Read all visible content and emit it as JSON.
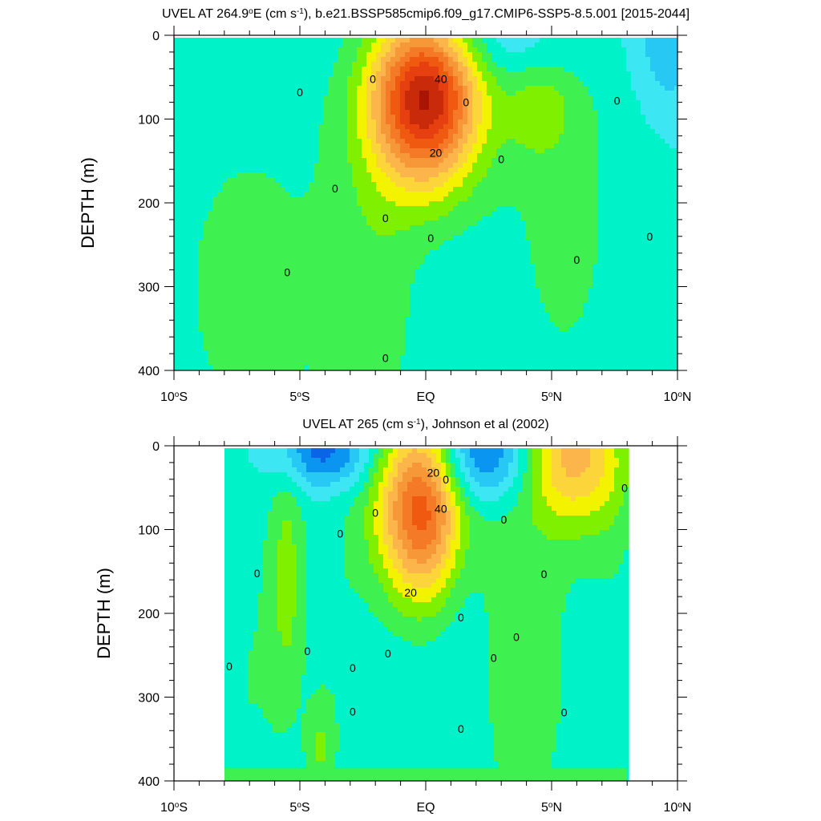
{
  "chart_data": [
    {
      "type": "contour",
      "title_parts": [
        "UVEL AT 264.9",
        "o",
        "E (cm s",
        "-1",
        "), b.e21.BSSP585cmip6.f09_g17.CMIP6-SSP5-8.5.001 [2015-2044]"
      ],
      "ylabel": "DEPTH (m)",
      "xlim": [
        -10,
        10
      ],
      "ylim": [
        400,
        0
      ],
      "y_ticks": [
        0,
        100,
        200,
        300,
        400
      ],
      "x_ticks": [
        {
          "value": -10,
          "parts": [
            "10",
            "o",
            "S"
          ]
        },
        {
          "value": -5,
          "parts": [
            "5",
            "o",
            "S"
          ]
        },
        {
          "value": 0,
          "parts": [
            "EQ"
          ]
        },
        {
          "value": 5,
          "parts": [
            "5",
            "o",
            "N"
          ]
        },
        {
          "value": 10,
          "parts": [
            "10",
            "o",
            "N"
          ]
        }
      ],
      "levels": [
        -10,
        -5,
        0,
        5,
        10,
        15,
        20,
        25,
        30,
        35,
        40,
        45,
        50,
        55
      ],
      "level_colors": [
        "#28c8f5",
        "#3ce6f2",
        "#00f2c8",
        "#3ef050",
        "#7ef000",
        "#f3f300",
        "#fbd53a",
        "#fbb54a",
        "#f79838",
        "#f47a28",
        "#ef5a10",
        "#e64010",
        "#c82a0a",
        "#a81505"
      ],
      "cores": [
        {
          "lat": 0.0,
          "depth": 72,
          "value": 55,
          "width": 1.5,
          "height": 75
        },
        {
          "lat": 4.5,
          "depth": 90,
          "value": 9,
          "width": 0.9,
          "height": 40
        },
        {
          "lat": 2.0,
          "depth": 5,
          "value": -9,
          "width": 2.6,
          "height": 35
        },
        {
          "lat": 9.6,
          "depth": 10,
          "value": -9,
          "width": 1.0,
          "height": 60
        },
        {
          "lat": -7.0,
          "depth": 300,
          "value": 6,
          "width": 3.5,
          "height": 230
        },
        {
          "lat": -2.0,
          "depth": 280,
          "value": 6,
          "width": 1.3,
          "height": 180
        },
        {
          "lat": 5.5,
          "depth": 200,
          "value": 6,
          "width": 2.3,
          "height": 250
        }
      ],
      "contour_labels": [
        {
          "lat": 0.6,
          "depth": 52,
          "text": "40"
        },
        {
          "lat": 0.4,
          "depth": 140,
          "text": "20"
        },
        {
          "lat": -5.0,
          "depth": 68,
          "text": "0"
        },
        {
          "lat": -2.1,
          "depth": 52,
          "text": "0"
        },
        {
          "lat": 1.6,
          "depth": 80,
          "text": "0"
        },
        {
          "lat": 3.0,
          "depth": 148,
          "text": "0"
        },
        {
          "lat": 7.6,
          "depth": 78,
          "text": "0"
        },
        {
          "lat": -3.6,
          "depth": 183,
          "text": "0"
        },
        {
          "lat": -1.6,
          "depth": 218,
          "text": "0"
        },
        {
          "lat": 0.2,
          "depth": 242,
          "text": "0"
        },
        {
          "lat": 6.0,
          "depth": 268,
          "text": "0"
        },
        {
          "lat": 8.9,
          "depth": 240,
          "text": "0"
        },
        {
          "lat": -5.5,
          "depth": 283,
          "text": "0"
        },
        {
          "lat": -1.6,
          "depth": 385,
          "text": "0"
        }
      ]
    },
    {
      "type": "contour",
      "title_parts": [
        "UVEL AT 265 (cm s",
        "-1",
        "), Johnson et al (2002)"
      ],
      "ylabel": "DEPTH (m)",
      "xlim": [
        -10,
        10
      ],
      "ylim": [
        400,
        0
      ],
      "y_ticks": [
        0,
        100,
        200,
        300,
        400
      ],
      "x_ticks": [
        {
          "value": -10,
          "parts": [
            "10",
            "o",
            "S"
          ]
        },
        {
          "value": -5,
          "parts": [
            "5",
            "o",
            "S"
          ]
        },
        {
          "value": 0,
          "parts": [
            "EQ"
          ]
        },
        {
          "value": 5,
          "parts": [
            "5",
            "o",
            "N"
          ]
        },
        {
          "value": 10,
          "parts": [
            "10",
            "o",
            "N"
          ]
        }
      ],
      "data_lat_range": [
        -8,
        8
      ],
      "levels": [
        -20,
        -15,
        -10,
        -5,
        0,
        5,
        10,
        15,
        20,
        25,
        30,
        35,
        40,
        45
      ],
      "level_colors": [
        "#0a64e6",
        "#0a96f0",
        "#28c8f5",
        "#3ce6f2",
        "#00f2c8",
        "#3ef050",
        "#7ef000",
        "#f3f300",
        "#fbd53a",
        "#fbb54a",
        "#f79838",
        "#f47a28",
        "#ef5a10",
        "#e64010"
      ],
      "cores": [
        {
          "lat": -0.1,
          "depth": 70,
          "value": 45,
          "width": 1.3,
          "height": 80
        },
        {
          "lat": 5.8,
          "depth": 10,
          "value": 26,
          "width": 1.5,
          "height": 60
        },
        {
          "lat": 2.2,
          "depth": 12,
          "value": -22,
          "width": 1.6,
          "height": 40
        },
        {
          "lat": -4.0,
          "depth": 8,
          "value": -18,
          "width": 1.4,
          "height": 30
        },
        {
          "lat": 1.4,
          "depth": 110,
          "value": -6,
          "width": 0.8,
          "height": 80
        },
        {
          "lat": -5.5,
          "depth": 150,
          "value": 10,
          "width": 0.5,
          "height": 110
        },
        {
          "lat": -7.0,
          "depth": 280,
          "value": 5,
          "width": 1.3,
          "height": 180
        },
        {
          "lat": -3.5,
          "depth": 240,
          "value": 4,
          "width": 0.9,
          "height": 180
        },
        {
          "lat": 3.0,
          "depth": 260,
          "value": 5,
          "width": 1.0,
          "height": 200
        },
        {
          "lat": 5.0,
          "depth": 260,
          "value": 5,
          "width": 1.2,
          "height": 240
        },
        {
          "lat": -4.2,
          "depth": 360,
          "value": 8,
          "width": 0.4,
          "height": 40
        },
        {
          "lat": 7.5,
          "depth": 120,
          "value": 4,
          "width": 0.8,
          "height": 90
        }
      ],
      "contour_labels": [
        {
          "lat": 0.3,
          "depth": 32,
          "text": "20"
        },
        {
          "lat": 0.6,
          "depth": 75,
          "text": "40"
        },
        {
          "lat": -0.6,
          "depth": 175,
          "text": "20"
        },
        {
          "lat": 0.8,
          "depth": 40,
          "text": "0"
        },
        {
          "lat": -2.0,
          "depth": 80,
          "text": "0"
        },
        {
          "lat": -3.4,
          "depth": 105,
          "text": "0"
        },
        {
          "lat": -6.7,
          "depth": 152,
          "text": "0"
        },
        {
          "lat": 3.1,
          "depth": 88,
          "text": "0"
        },
        {
          "lat": 4.7,
          "depth": 153,
          "text": "0"
        },
        {
          "lat": 7.9,
          "depth": 50,
          "text": "0"
        },
        {
          "lat": 1.4,
          "depth": 205,
          "text": "0"
        },
        {
          "lat": 3.6,
          "depth": 228,
          "text": "0"
        },
        {
          "lat": 2.7,
          "depth": 253,
          "text": "0"
        },
        {
          "lat": -4.7,
          "depth": 245,
          "text": "0"
        },
        {
          "lat": -1.5,
          "depth": 248,
          "text": "0"
        },
        {
          "lat": -2.9,
          "depth": 265,
          "text": "0"
        },
        {
          "lat": -7.8,
          "depth": 263,
          "text": "0"
        },
        {
          "lat": -2.9,
          "depth": 317,
          "text": "0"
        },
        {
          "lat": 5.5,
          "depth": 318,
          "text": "0"
        },
        {
          "lat": 1.4,
          "depth": 338,
          "text": "0"
        }
      ]
    }
  ]
}
